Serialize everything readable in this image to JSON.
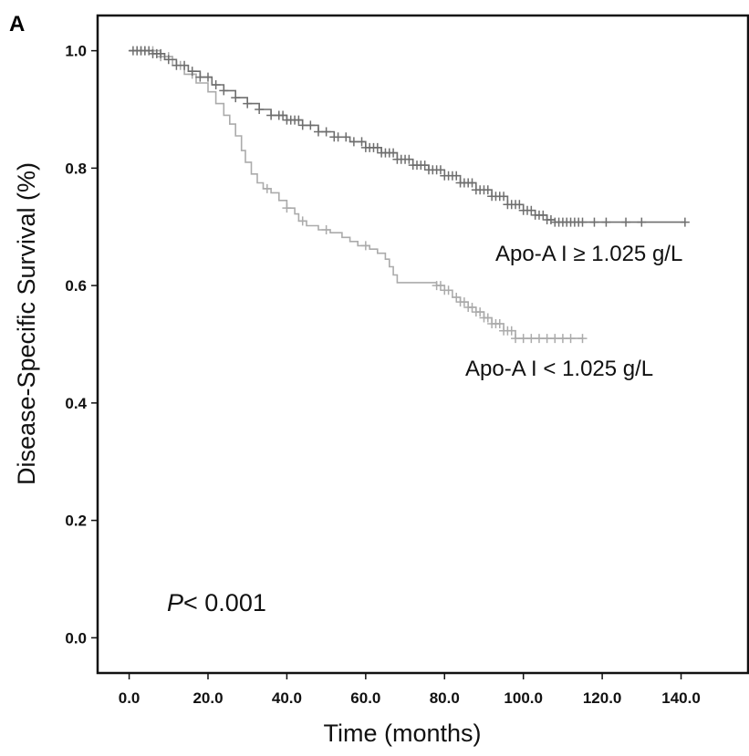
{
  "panel_label": "A",
  "p_value": {
    "italic": "P",
    "rest": "< 0.001"
  },
  "chart_data": {
    "type": "line",
    "subtype": "kaplan-meier",
    "xlabel": "Time (months)",
    "ylabel": "Disease-Specific  Survival (%)",
    "xlim": [
      -8,
      157
    ],
    "ylim": [
      -0.06,
      1.06
    ],
    "xticks": [
      0,
      20,
      40,
      60,
      80,
      100,
      120,
      140
    ],
    "xtick_labels": [
      "0.0",
      "20.0",
      "40.0",
      "60.0",
      "80.0",
      "100.0",
      "120.0",
      "140.0"
    ],
    "yticks": [
      0.0,
      0.2,
      0.4,
      0.6,
      0.8,
      1.0
    ],
    "ytick_labels": [
      "0.0",
      "0.2",
      "0.4",
      "0.6",
      "0.8",
      "1.0"
    ],
    "grid": false,
    "series": [
      {
        "name": "Apo-A I ≥ 1.025 g/L",
        "color": "#6e6e6e",
        "steps": [
          [
            0,
            1.0
          ],
          [
            6,
            0.995
          ],
          [
            9,
            0.985
          ],
          [
            12,
            0.975
          ],
          [
            15,
            0.965
          ],
          [
            18,
            0.955
          ],
          [
            21,
            0.942
          ],
          [
            24,
            0.932
          ],
          [
            27,
            0.92
          ],
          [
            30,
            0.91
          ],
          [
            33,
            0.9
          ],
          [
            36,
            0.89
          ],
          [
            40,
            0.882
          ],
          [
            44,
            0.873
          ],
          [
            48,
            0.862
          ],
          [
            52,
            0.853
          ],
          [
            56,
            0.845
          ],
          [
            60,
            0.835
          ],
          [
            64,
            0.826
          ],
          [
            68,
            0.815
          ],
          [
            72,
            0.805
          ],
          [
            76,
            0.797
          ],
          [
            80,
            0.787
          ],
          [
            84,
            0.775
          ],
          [
            88,
            0.763
          ],
          [
            92,
            0.752
          ],
          [
            96,
            0.738
          ],
          [
            100,
            0.728
          ],
          [
            103,
            0.72
          ],
          [
            106,
            0.712
          ],
          [
            108,
            0.708
          ],
          [
            141,
            0.708
          ]
        ],
        "censor_x": [
          1,
          2,
          3,
          4,
          5,
          6,
          7,
          8,
          10,
          12,
          14,
          16,
          18,
          20,
          22,
          24,
          27,
          30,
          33,
          36,
          38,
          39,
          40,
          41,
          42,
          43,
          44,
          46,
          48,
          50,
          52,
          53,
          55,
          57,
          59,
          60,
          61,
          62,
          63,
          64,
          65,
          66,
          67,
          68,
          69,
          70,
          71,
          72,
          73,
          74,
          75,
          76,
          77,
          78,
          79,
          80,
          81,
          82,
          83,
          84,
          85,
          86,
          87,
          88,
          89,
          90,
          91,
          92,
          93,
          94,
          95,
          96,
          97,
          98,
          99,
          100,
          101,
          102,
          103,
          104,
          105,
          106,
          107,
          108,
          109,
          110,
          111,
          112,
          113,
          114,
          115,
          118,
          121,
          126,
          130,
          141
        ]
      },
      {
        "name": "Apo-A I < 1.025 g/L",
        "color": "#ababab",
        "steps": [
          [
            0,
            1.0
          ],
          [
            8,
            0.99
          ],
          [
            11,
            0.975
          ],
          [
            14,
            0.96
          ],
          [
            17,
            0.945
          ],
          [
            20,
            0.93
          ],
          [
            22,
            0.91
          ],
          [
            24,
            0.89
          ],
          [
            25.5,
            0.875
          ],
          [
            27,
            0.855
          ],
          [
            28.5,
            0.83
          ],
          [
            29.5,
            0.81
          ],
          [
            31,
            0.79
          ],
          [
            32.5,
            0.775
          ],
          [
            34,
            0.765
          ],
          [
            36,
            0.758
          ],
          [
            38,
            0.745
          ],
          [
            40,
            0.732
          ],
          [
            42,
            0.722
          ],
          [
            43,
            0.71
          ],
          [
            45,
            0.702
          ],
          [
            48,
            0.695
          ],
          [
            51,
            0.69
          ],
          [
            54,
            0.682
          ],
          [
            56,
            0.675
          ],
          [
            58,
            0.668
          ],
          [
            61,
            0.662
          ],
          [
            63,
            0.655
          ],
          [
            65,
            0.645
          ],
          [
            66,
            0.632
          ],
          [
            67,
            0.618
          ],
          [
            68,
            0.605
          ],
          [
            78,
            0.6
          ],
          [
            80,
            0.592
          ],
          [
            82,
            0.58
          ],
          [
            84,
            0.572
          ],
          [
            86,
            0.563
          ],
          [
            88,
            0.555
          ],
          [
            90,
            0.545
          ],
          [
            92,
            0.535
          ],
          [
            95,
            0.523
          ],
          [
            98,
            0.51
          ],
          [
            115,
            0.51
          ]
        ],
        "censor_x": [
          2,
          3,
          4,
          6,
          8,
          10,
          13,
          16,
          35,
          40,
          44,
          50,
          60,
          78,
          79,
          80,
          81,
          83,
          84,
          85,
          86,
          87,
          88,
          89,
          90,
          91,
          92,
          93,
          94,
          95,
          96,
          97,
          98,
          100,
          102,
          104,
          106,
          108,
          110,
          112,
          115
        ]
      }
    ]
  }
}
